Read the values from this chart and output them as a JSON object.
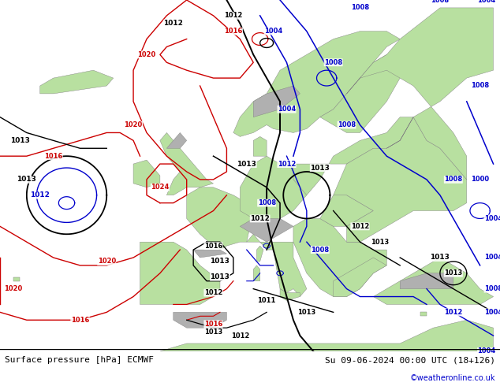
{
  "title_left": "Surface pressure [hPa] ECMWF",
  "title_right": "Su 09-06-2024 00:00 UTC (18+126)",
  "credit": "©weatheronline.co.uk",
  "ocean_color": "#d8d8d8",
  "land_color": "#b8e0a0",
  "highland_color": "#b0b0b0",
  "fig_width": 6.34,
  "fig_height": 4.9,
  "dpi": 100
}
